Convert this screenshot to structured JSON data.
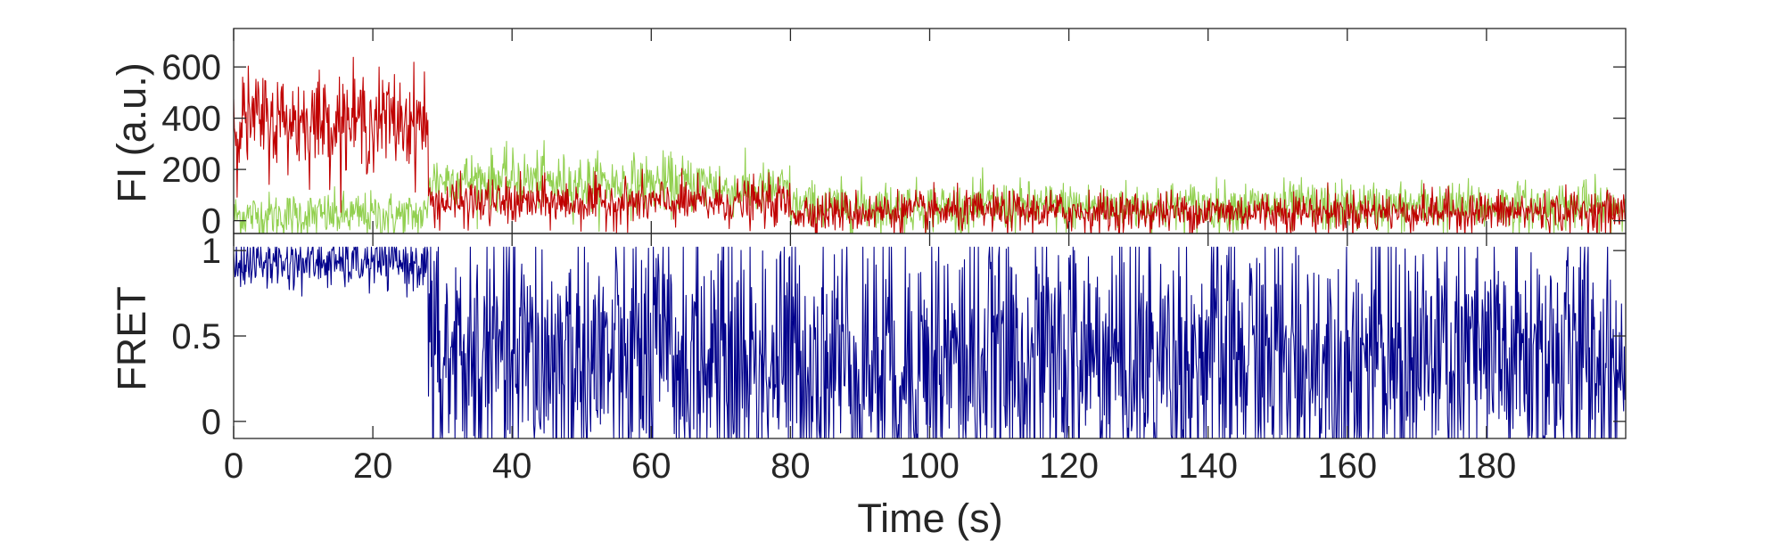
{
  "chart_data": [
    {
      "type": "line",
      "panel": "top",
      "ylabel": "FI (a.u.)",
      "xlim": [
        0,
        200
      ],
      "ylim": [
        -50,
        750
      ],
      "yticks": [
        0,
        200,
        400,
        600
      ],
      "ytick_labels": [
        "0",
        "200",
        "400",
        "600"
      ],
      "grid": false,
      "series": [
        {
          "color": "#92d050",
          "segments": [
            {
              "x_range": [
                0,
                28
              ],
              "mean": 20,
              "noise": 45
            },
            {
              "x_range": [
                28,
                45
              ],
              "mean": 160,
              "noise": 55
            },
            {
              "x_range": [
                45,
                70
              ],
              "mean": 145,
              "noise": 55
            },
            {
              "x_range": [
                70,
                80
              ],
              "mean": 120,
              "noise": 50
            },
            {
              "x_range": [
                80,
                200
              ],
              "mean": 55,
              "noise": 48
            }
          ]
        },
        {
          "color": "#c00000",
          "segments": [
            {
              "x_range": [
                0,
                28
              ],
              "mean": 390,
              "noise": 95
            },
            {
              "x_range": [
                28,
                80
              ],
              "mean": 70,
              "noise": 45
            },
            {
              "x_range": [
                80,
                200
              ],
              "mean": 35,
              "noise": 40
            }
          ]
        }
      ]
    },
    {
      "type": "line",
      "panel": "bottom",
      "xlabel": "Time (s)",
      "ylabel": "FRET",
      "xlim": [
        0,
        200
      ],
      "ylim": [
        -0.1,
        1.1
      ],
      "yticks": [
        0,
        0.5,
        1
      ],
      "ytick_labels": [
        "0",
        "0.5",
        "1"
      ],
      "xticks": [
        0,
        20,
        40,
        60,
        80,
        100,
        120,
        140,
        160,
        180
      ],
      "xtick_labels": [
        "0",
        "20",
        "40",
        "60",
        "80",
        "100",
        "120",
        "140",
        "160",
        "180"
      ],
      "grid": false,
      "series": [
        {
          "color": "#00008b",
          "segments": [
            {
              "x_range": [
                0,
                28
              ],
              "mean": 0.93,
              "noise": 0.08
            },
            {
              "x_range": [
                28,
                200
              ],
              "mean": 0.35,
              "noise": 0.42
            }
          ]
        }
      ]
    }
  ]
}
